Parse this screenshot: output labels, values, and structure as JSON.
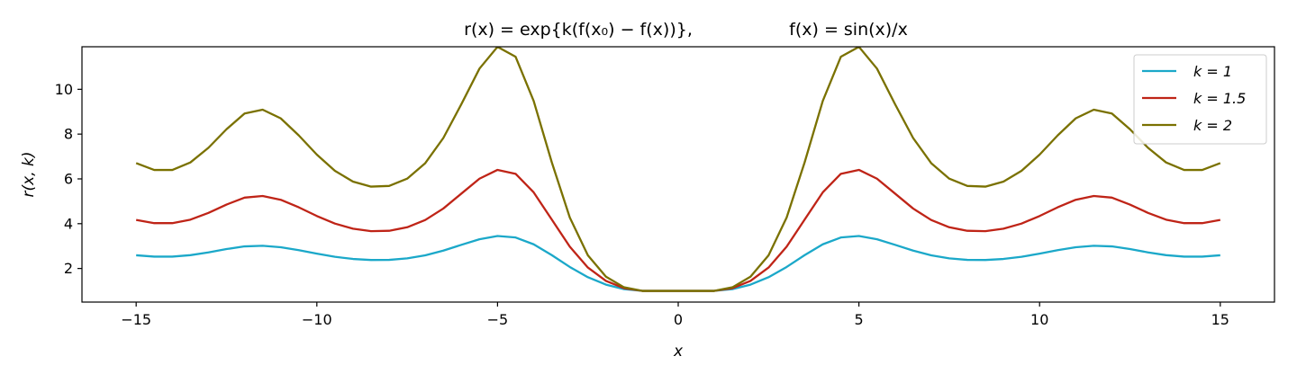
{
  "chart_data": {
    "type": "line",
    "title_left": "r(x) = exp{k(f(x₀) − f(x))},",
    "title_right": "f(x) = sin(x)/x",
    "xlabel": "x",
    "ylabel": "r(x, k)",
    "xlim": [
      -16.5,
      16.5
    ],
    "ylim": [
      0.5,
      11.9
    ],
    "xticks": [
      -15,
      -10,
      -5,
      0,
      5,
      10,
      15
    ],
    "xtick_labels": [
      "−15",
      "−10",
      "−5",
      "0",
      "5",
      "10",
      "15"
    ],
    "yticks": [
      2,
      4,
      6,
      8,
      10
    ],
    "ytick_labels": [
      "2",
      "4",
      "6",
      "8",
      "10"
    ],
    "grid": false,
    "legend_position": "top-right",
    "x": [
      -15,
      -14.5,
      -14,
      -13.5,
      -13,
      -12.5,
      -12,
      -11.5,
      -11,
      -10.5,
      -10,
      -9.5,
      -9,
      -8.5,
      -8,
      -7.5,
      -7,
      -6.5,
      -6,
      -5.5,
      -5,
      -4.5,
      -4,
      -3.5,
      -3,
      -2.5,
      -2,
      -1.5,
      -1,
      -0.5,
      0,
      0.5,
      1,
      1.5,
      2,
      2.5,
      3,
      3.5,
      4,
      4.5,
      5,
      5.5,
      6,
      6.5,
      7,
      7.5,
      8,
      8.5,
      9,
      9.5,
      10,
      10.5,
      11,
      11.5,
      12,
      12.5,
      13,
      13.5,
      14,
      14.5,
      15
    ],
    "series": [
      {
        "name": "k = 1",
        "color": "#1ba8c9",
        "values": [
          2.59,
          2.529,
          2.529,
          2.595,
          2.718,
          2.867,
          2.987,
          3.015,
          2.95,
          2.818,
          2.662,
          2.522,
          2.425,
          2.378,
          2.384,
          2.452,
          2.589,
          2.797,
          3.056,
          3.305,
          3.449,
          3.384,
          3.079,
          2.597,
          2.067,
          1.609,
          1.278,
          1.077,
          1.0,
          1.0,
          1.0,
          1.0,
          1.0,
          1.077,
          1.278,
          1.609,
          2.067,
          2.597,
          3.079,
          3.384,
          3.449,
          3.305,
          3.056,
          2.797,
          2.589,
          2.452,
          2.384,
          2.378,
          2.425,
          2.522,
          2.662,
          2.818,
          2.95,
          3.015,
          2.987,
          2.867,
          2.718,
          2.595,
          2.529,
          2.529,
          2.59
        ]
      },
      {
        "name": "k = 1.5",
        "color": "#bf2417",
        "values": [
          4.168,
          4.024,
          4.024,
          4.18,
          4.482,
          4.854,
          5.163,
          5.236,
          5.067,
          4.731,
          4.343,
          4.005,
          3.777,
          3.666,
          3.683,
          3.84,
          4.166,
          4.677,
          5.344,
          6.009,
          6.402,
          6.226,
          5.399,
          4.186,
          2.973,
          2.042,
          1.444,
          1.118,
          1.0,
          1.0,
          1.0,
          1.0,
          1.0,
          1.118,
          1.444,
          2.042,
          2.973,
          4.186,
          5.399,
          6.226,
          6.402,
          6.009,
          5.344,
          4.677,
          4.166,
          3.84,
          3.683,
          3.666,
          3.777,
          4.005,
          4.343,
          4.731,
          5.067,
          5.236,
          5.163,
          4.854,
          4.482,
          4.18,
          4.024,
          4.024,
          4.168
        ]
      },
      {
        "name": "k = 2",
        "color": "#7a7100",
        "values": [
          6.706,
          6.398,
          6.398,
          6.735,
          7.389,
          8.217,
          8.921,
          9.091,
          8.703,
          7.941,
          7.084,
          6.359,
          5.88,
          5.655,
          5.686,
          6.011,
          6.703,
          7.826,
          9.337,
          10.924,
          11.897,
          11.452,
          9.48,
          6.747,
          4.275,
          2.588,
          1.635,
          1.16,
          1.0,
          1.0,
          1.0,
          1.0,
          1.0,
          1.16,
          1.635,
          2.588,
          4.275,
          6.747,
          9.48,
          11.452,
          11.897,
          10.924,
          9.337,
          7.826,
          6.703,
          6.011,
          5.686,
          5.655,
          5.88,
          6.359,
          7.084,
          7.941,
          8.703,
          9.091,
          8.921,
          8.217,
          7.389,
          6.735,
          6.398,
          6.398,
          6.706
        ]
      }
    ]
  }
}
